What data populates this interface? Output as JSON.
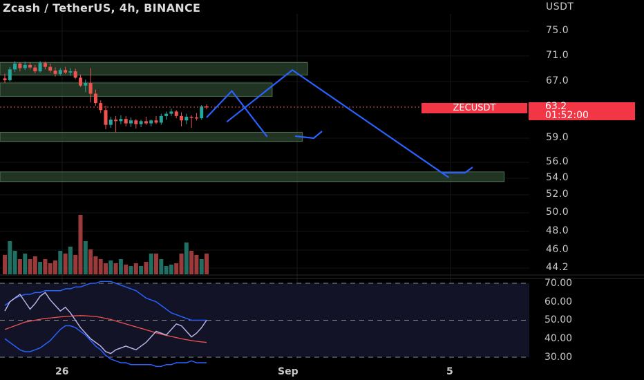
{
  "header": {
    "title": "Zcash / TetherUS, 4h, BINANCE"
  },
  "price_axis": {
    "unit": "USDT",
    "labels": [
      "75.0",
      "71.0",
      "67.0",
      "59.0",
      "56.0",
      "54.0",
      "52.0",
      "50.0",
      "48.0",
      "46.0",
      "44.2"
    ]
  },
  "last_price": {
    "symbol": "ZECUSDT",
    "price": "63.2",
    "countdown": "01:52:00"
  },
  "oscillator_axis": {
    "labels": [
      "70.00",
      "60.00",
      "50.00",
      "40.00",
      "30.00"
    ]
  },
  "time_axis": {
    "labels": [
      "26",
      "Sep",
      "5"
    ]
  },
  "colors": {
    "up": "#26a69a",
    "down": "#ef5350",
    "drawing": "#2962ff",
    "zone": "#3c5a3e",
    "background": "#000000"
  },
  "chart_data": {
    "type": "candlestick",
    "title": "Zcash / TetherUS, 4h, BINANCE",
    "ohlc": [
      [
        67.5,
        68.2,
        66.8,
        67.2
      ],
      [
        67.2,
        69.3,
        67.0,
        68.9
      ],
      [
        68.9,
        70.2,
        68.5,
        69.8
      ],
      [
        69.8,
        70.0,
        68.6,
        69.1
      ],
      [
        69.1,
        70.1,
        68.8,
        69.6
      ],
      [
        69.6,
        70.0,
        68.9,
        69.2
      ],
      [
        69.2,
        69.6,
        68.3,
        68.6
      ],
      [
        68.6,
        70.2,
        68.4,
        69.9
      ],
      [
        69.9,
        70.1,
        68.9,
        69.3
      ],
      [
        69.3,
        69.8,
        68.4,
        68.7
      ],
      [
        68.7,
        69.2,
        67.8,
        68.2
      ],
      [
        68.2,
        69.1,
        67.9,
        68.8
      ],
      [
        68.8,
        69.3,
        68.2,
        68.4
      ],
      [
        68.4,
        69.1,
        67.9,
        68.6
      ],
      [
        68.6,
        69.0,
        67.4,
        67.6
      ],
      [
        67.6,
        68.1,
        66.2,
        66.4
      ],
      [
        66.4,
        67.3,
        65.4,
        66.8
      ],
      [
        66.8,
        69.1,
        63.9,
        65.2
      ],
      [
        65.2,
        65.8,
        63.4,
        63.8
      ],
      [
        63.8,
        64.2,
        62.4,
        62.8
      ],
      [
        62.8,
        63.4,
        60.2,
        60.8
      ],
      [
        60.8,
        61.9,
        60.4,
        61.5
      ],
      [
        61.5,
        62.0,
        59.8,
        61.3
      ],
      [
        61.3,
        62.1,
        60.9,
        61.6
      ],
      [
        61.6,
        62.0,
        60.6,
        61.0
      ],
      [
        61.0,
        61.8,
        60.5,
        61.4
      ],
      [
        61.4,
        61.6,
        60.3,
        60.9
      ],
      [
        60.9,
        61.5,
        60.5,
        61.3
      ],
      [
        61.3,
        61.9,
        60.8,
        61.0
      ],
      [
        61.0,
        61.5,
        60.6,
        61.4
      ],
      [
        61.4,
        62.0,
        60.9,
        61.1
      ],
      [
        61.1,
        62.3,
        60.8,
        62.0
      ],
      [
        62.0,
        62.6,
        61.5,
        62.3
      ],
      [
        62.3,
        63.0,
        62.0,
        62.6
      ],
      [
        62.6,
        62.8,
        61.7,
        62.0
      ],
      [
        62.0,
        62.5,
        60.6,
        61.4
      ],
      [
        61.4,
        62.3,
        60.9,
        61.9
      ],
      [
        61.9,
        62.1,
        60.4,
        61.8
      ],
      [
        61.8,
        62.4,
        61.4,
        61.7
      ],
      [
        61.7,
        63.5,
        61.5,
        63.3
      ],
      [
        63.3,
        63.6,
        62.9,
        63.2
      ]
    ],
    "volume": [
      28,
      48,
      34,
      22,
      30,
      22,
      26,
      18,
      22,
      16,
      20,
      34,
      30,
      40,
      28,
      86,
      48,
      36,
      26,
      22,
      16,
      20,
      16,
      22,
      14,
      12,
      16,
      12,
      18,
      30,
      30,
      22,
      12,
      14,
      16,
      30,
      46,
      34,
      28,
      22,
      30
    ],
    "zones": [
      {
        "from": 68.0,
        "to": 70.0,
        "x_end_bar": 60
      },
      {
        "from": 64.8,
        "to": 66.8,
        "x_end_bar": 53
      },
      {
        "from": 58.6,
        "to": 59.8,
        "x_end_bar": 59
      },
      {
        "from": 53.6,
        "to": 54.8,
        "x_end_bar": 99
      }
    ],
    "rsi": [
      55,
      60,
      62,
      64,
      60,
      56,
      59,
      63,
      65,
      61,
      58,
      55,
      57,
      54,
      50,
      46,
      43,
      40,
      38,
      36,
      33,
      32,
      34,
      35,
      36,
      35,
      34,
      36,
      38,
      41,
      44,
      43,
      42,
      45,
      48,
      47,
      44,
      41,
      43,
      46,
      50
    ],
    "rsi_ma": [
      45,
      46,
      47,
      48,
      49,
      49.5,
      50,
      50.5,
      51,
      51.2,
      51.5,
      51.8,
      52,
      52.2,
      52.4,
      52.5,
      52.4,
      52.2,
      52,
      51.6,
      51,
      50.4,
      49.6,
      48.8,
      48,
      47.2,
      46.4,
      45.6,
      44.8,
      44,
      43.2,
      42.5,
      41.8,
      41.2,
      40.6,
      40,
      39.5,
      39,
      38.6,
      38.3,
      38
    ],
    "band_upper": [
      58,
      60,
      62,
      63,
      64,
      64,
      65,
      65,
      66,
      66,
      66,
      66,
      67,
      67,
      68,
      68,
      69,
      70,
      70,
      71,
      71,
      71,
      70,
      69,
      68,
      67,
      66,
      64,
      62,
      61,
      60,
      58,
      56,
      54,
      53,
      52,
      51,
      50,
      50,
      50,
      50
    ],
    "band_lower": [
      40,
      38,
      36,
      34,
      33,
      33,
      34,
      35,
      37,
      39,
      42,
      45,
      47,
      47,
      46,
      44,
      42,
      39,
      36,
      34,
      31,
      29,
      28,
      27,
      27,
      26,
      26,
      26,
      26,
      26,
      25,
      25,
      26,
      26,
      27,
      27,
      27,
      28,
      27,
      27,
      27
    ],
    "rsi_levels": [
      70,
      50,
      30
    ],
    "projection_small": [
      [
        40,
        61.8
      ],
      [
        45,
        65.6
      ],
      [
        52,
        59.2
      ]
    ],
    "projection_large": [
      [
        44,
        61.2
      ],
      [
        57,
        68.8
      ],
      [
        88,
        54.1
      ]
    ],
    "ylim": [
      44.2,
      77.0
    ]
  }
}
